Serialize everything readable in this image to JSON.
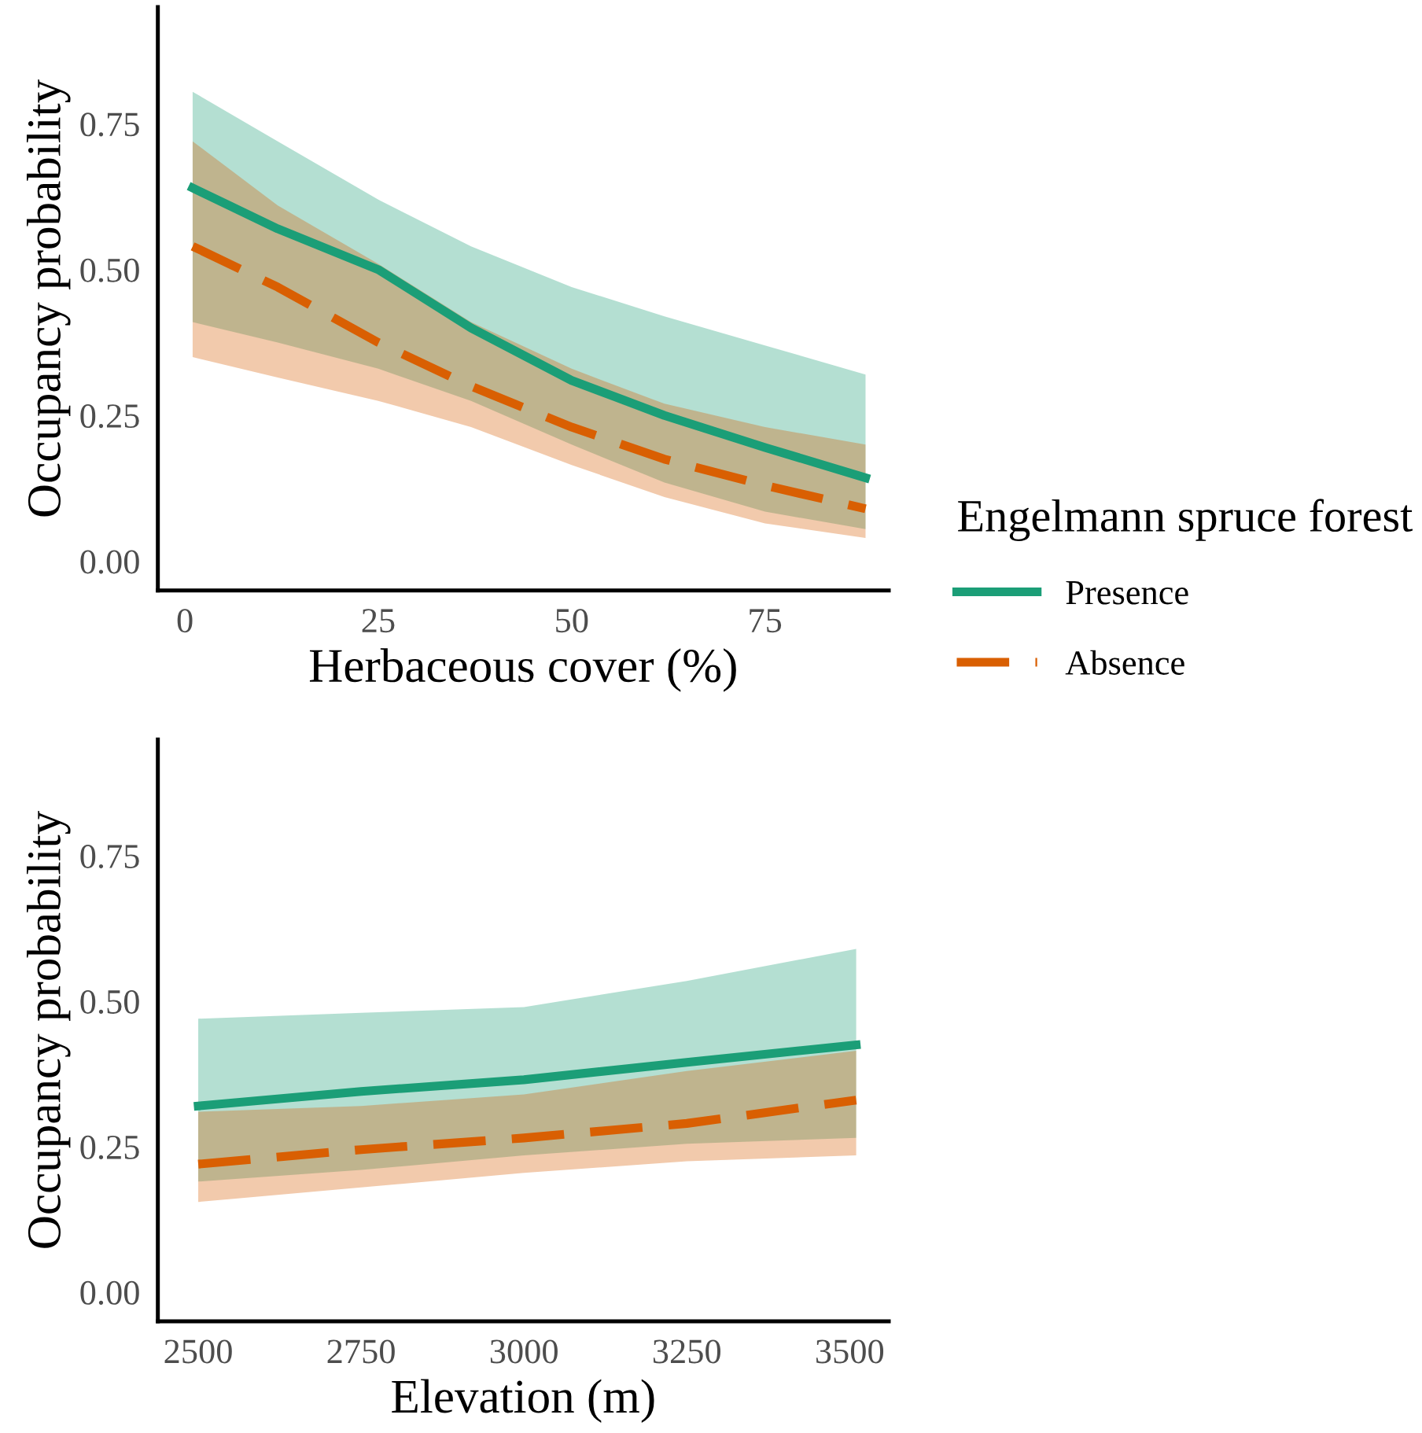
{
  "chart_data": [
    {
      "type": "line",
      "xlabel": "Herbaceous cover (%)",
      "ylabel": "Occupancy probability",
      "legend_title": "Engelmann spruce forest",
      "legend": "right",
      "grid": false,
      "x": [
        1,
        12,
        25,
        37,
        50,
        62,
        75,
        88
      ],
      "xlim": [
        -3.5,
        91
      ],
      "xticks": [
        0,
        25,
        50,
        75
      ],
      "ylim": [
        -0.05,
        0.95
      ],
      "yticks": [
        {
          "value": 0,
          "label": "0.00"
        },
        {
          "value": 0.25,
          "label": "0.25"
        },
        {
          "value": 0.5,
          "label": "0.50"
        },
        {
          "value": 0.75,
          "label": "0.75"
        }
      ],
      "series": [
        {
          "name": "Presence",
          "color": "#1b9e77",
          "line_style": "solid",
          "values": [
            0.64,
            0.57,
            0.5,
            0.4,
            0.31,
            0.25,
            0.195,
            0.143
          ],
          "lower": [
            0.41,
            0.375,
            0.33,
            0.275,
            0.2,
            0.135,
            0.085,
            0.055
          ],
          "upper": [
            0.805,
            0.72,
            0.62,
            0.54,
            0.47,
            0.42,
            0.37,
            0.32
          ]
        },
        {
          "name": "Absence",
          "color": "#d95f02",
          "line_style": "dashed",
          "values": [
            0.54,
            0.47,
            0.375,
            0.3,
            0.23,
            0.175,
            0.13,
            0.09
          ],
          "lower": [
            0.35,
            0.315,
            0.275,
            0.23,
            0.165,
            0.11,
            0.065,
            0.04
          ],
          "upper": [
            0.72,
            0.61,
            0.51,
            0.41,
            0.33,
            0.27,
            0.23,
            0.2
          ]
        }
      ]
    },
    {
      "type": "line",
      "xlabel": "Elevation (m)",
      "ylabel": "Occupancy probability",
      "legend": false,
      "grid": false,
      "x": [
        2500,
        2750,
        3000,
        3250,
        3510
      ],
      "xlim": [
        2438,
        3560
      ],
      "xticks": [
        2500,
        2750,
        3000,
        3250,
        3500
      ],
      "ylim": [
        -0.05,
        0.95
      ],
      "yticks": [
        {
          "value": 0,
          "label": "0.00"
        },
        {
          "value": 0.25,
          "label": "0.25"
        },
        {
          "value": 0.5,
          "label": "0.50"
        },
        {
          "value": 0.75,
          "label": "0.75"
        }
      ],
      "series": [
        {
          "color": "#1b9e77",
          "line_style": "solid",
          "values": [
            0.32,
            0.345,
            0.365,
            0.395,
            0.425
          ],
          "lower": [
            0.19,
            0.21,
            0.235,
            0.255,
            0.265
          ],
          "upper": [
            0.47,
            0.48,
            0.49,
            0.535,
            0.59
          ]
        },
        {
          "color": "#d95f02",
          "line_style": "dashed",
          "values": [
            0.22,
            0.245,
            0.265,
            0.29,
            0.33
          ],
          "lower": [
            0.155,
            0.18,
            0.205,
            0.225,
            0.235
          ],
          "upper": [
            0.31,
            0.32,
            0.34,
            0.38,
            0.415
          ]
        }
      ]
    }
  ]
}
